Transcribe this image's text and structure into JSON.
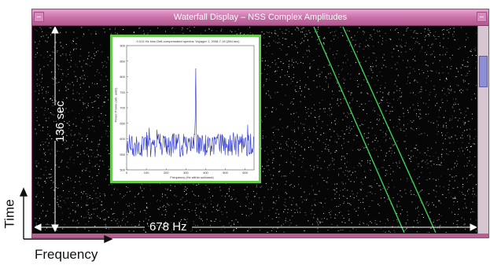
{
  "window": {
    "title": "Waterfall Display – NSS Complex Amplitudes"
  },
  "overlay": {
    "time_span": "136 sec",
    "freq_span": "678 Hz"
  },
  "axes": {
    "time": "Time",
    "frequency": "Frequency"
  },
  "inset": {
    "title": "0.013 Hz bins   Drift-compensated spectra: Voyager 1, 2008-7-16 (384 sec)",
    "xlabel": "Frequency (Hz within subband)",
    "ylabel": "Power Power (arb. units)",
    "xticks": [
      "0",
      "100",
      "200",
      "300",
      "400",
      "500",
      "600"
    ],
    "yticks": [
      "500",
      "550",
      "600",
      "650",
      "700",
      "750",
      "800",
      "850",
      "900"
    ]
  },
  "colors": {
    "signal_line": "#3cd25a",
    "inset_trace": "#2430c8",
    "noise": "#ffffff"
  }
}
